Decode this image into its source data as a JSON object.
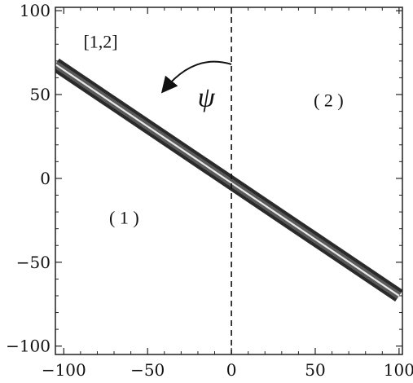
{
  "chart_data": {
    "type": "line",
    "xlim": [
      -105,
      102
    ],
    "ylim": [
      -105,
      102
    ],
    "x_ticks": [
      -100,
      -50,
      0,
      50,
      100
    ],
    "y_ticks": [
      -100,
      -50,
      0,
      50,
      100
    ],
    "x_tick_labels": [
      "−100",
      "−50",
      "0",
      "50",
      "100"
    ],
    "y_tick_labels": [
      "−100",
      "−50",
      "0",
      "50",
      "100"
    ],
    "grid": false,
    "series": [
      {
        "x": [
          -105,
          100
        ],
        "y": [
          68,
          -70
        ],
        "style": "thick dark band with light center line"
      }
    ],
    "reference_lines": [
      {
        "orientation": "vertical",
        "x": 0,
        "style": "dashed"
      }
    ],
    "annotations": [
      {
        "text": "[1,2]",
        "x": -78,
        "y": 78
      },
      {
        "text": "ψ",
        "x": -15,
        "y": 43
      },
      {
        "text": "( 2 )",
        "x": 58,
        "y": 43
      },
      {
        "text": "( 1 )",
        "x": -64,
        "y": -27
      }
    ],
    "arrow": {
      "from": [
        0,
        68
      ],
      "to": [
        -40,
        53
      ],
      "direction": "counterclockwise"
    }
  }
}
